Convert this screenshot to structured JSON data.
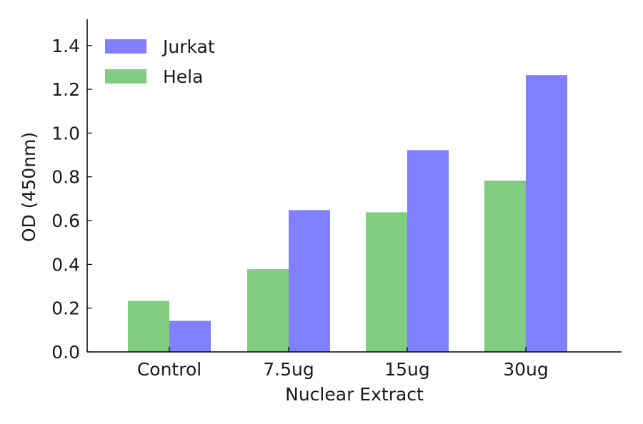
{
  "chart_data": {
    "type": "bar",
    "title": "",
    "xlabel": "Nuclear Extract",
    "ylabel": "OD (450nm)",
    "categories": [
      "Control",
      "7.5ug",
      "15ug",
      "30ug"
    ],
    "series": [
      {
        "name": "Hela",
        "color": "#80cc80",
        "values": [
          0.233,
          0.378,
          0.638,
          0.783
        ]
      },
      {
        "name": "Jurkat",
        "color": "#8080ff",
        "values": [
          0.142,
          0.648,
          0.922,
          1.265
        ]
      }
    ],
    "ylim": [
      0,
      1.52
    ],
    "yticks": [
      0.0,
      0.2,
      0.4,
      0.6,
      0.8,
      1.0,
      1.2,
      1.4
    ],
    "ytick_labels": [
      "0.0",
      "0.2",
      "0.4",
      "0.6",
      "0.8",
      "1.0",
      "1.2",
      "1.4"
    ],
    "grid": false,
    "legend": {
      "position": "top-left",
      "order": [
        "Jurkat",
        "Hela"
      ]
    }
  }
}
